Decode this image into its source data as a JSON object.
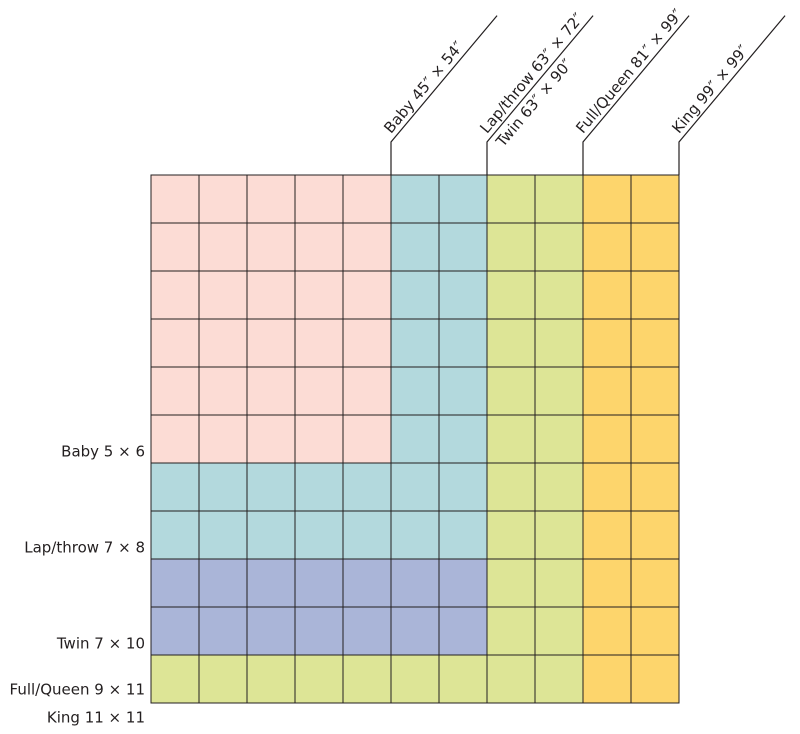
{
  "top_labels": [
    {
      "lines": [
        "Baby 45″ × 54″"
      ]
    },
    {
      "lines": [
        "Lap/throw 63″ × 72″",
        "Twin 63″ × 90″"
      ]
    },
    {
      "lines": [
        "Full/Queen 81″ × 99″"
      ]
    },
    {
      "lines": [
        "King 99″ × 99″"
      ]
    }
  ],
  "side_labels": [
    "Baby 5 × 6",
    "Lap/throw 7 × 8",
    "Twin 7 × 10",
    "Full/Queen 9 × 11",
    "King 11 × 11"
  ]
}
